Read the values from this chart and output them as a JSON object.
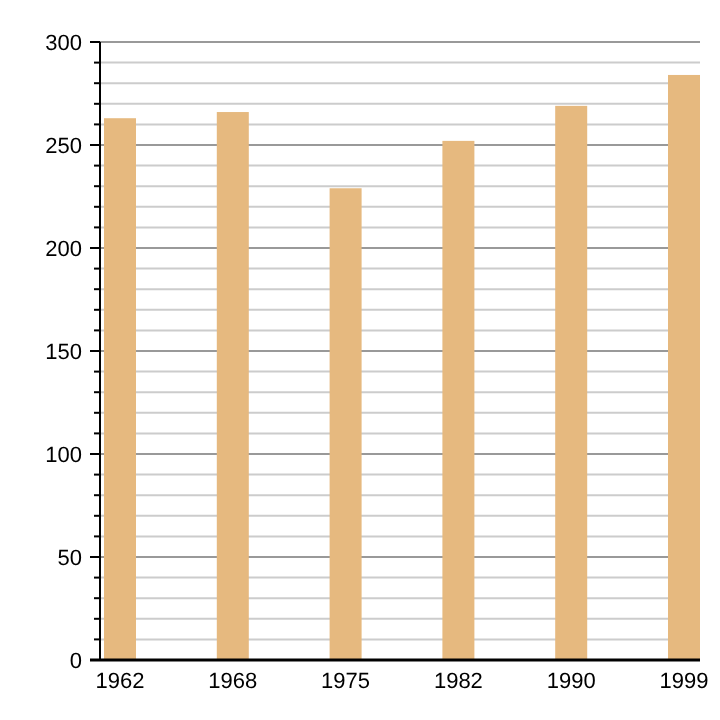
{
  "chart_data": {
    "type": "bar",
    "categories": [
      "1962",
      "1968",
      "1975",
      "1982",
      "1990",
      "1999"
    ],
    "values": [
      263,
      266,
      229,
      252,
      269,
      284
    ],
    "color": "#e6b97f",
    "ylim": [
      0,
      300
    ],
    "yticks": [
      0,
      {
        "value": 10,
        "label": null
      },
      {
        "value": 20,
        "label": null
      },
      {
        "value": 30,
        "label": null
      },
      {
        "value": 40,
        "label": null
      },
      50,
      {
        "value": 60,
        "label": null
      },
      {
        "value": 70,
        "label": null
      },
      {
        "value": 80,
        "label": null
      },
      {
        "value": 90,
        "label": null
      },
      100,
      {
        "value": 110,
        "label": null
      },
      {
        "value": 120,
        "label": null
      },
      {
        "value": 130,
        "label": null
      },
      {
        "value": 140,
        "label": null
      },
      150,
      {
        "value": 160,
        "label": null
      },
      {
        "value": 170,
        "label": null
      },
      {
        "value": 180,
        "label": null
      },
      {
        "value": 190,
        "label": null
      },
      200,
      {
        "value": 210,
        "label": null
      },
      {
        "value": 220,
        "label": null
      },
      {
        "value": 230,
        "label": null
      },
      {
        "value": 240,
        "label": null
      },
      250,
      {
        "value": 260,
        "label": null
      },
      {
        "value": 270,
        "label": null
      },
      {
        "value": 280,
        "label": null
      },
      {
        "value": 290,
        "label": null
      },
      300
    ],
    "grid": "y"
  }
}
